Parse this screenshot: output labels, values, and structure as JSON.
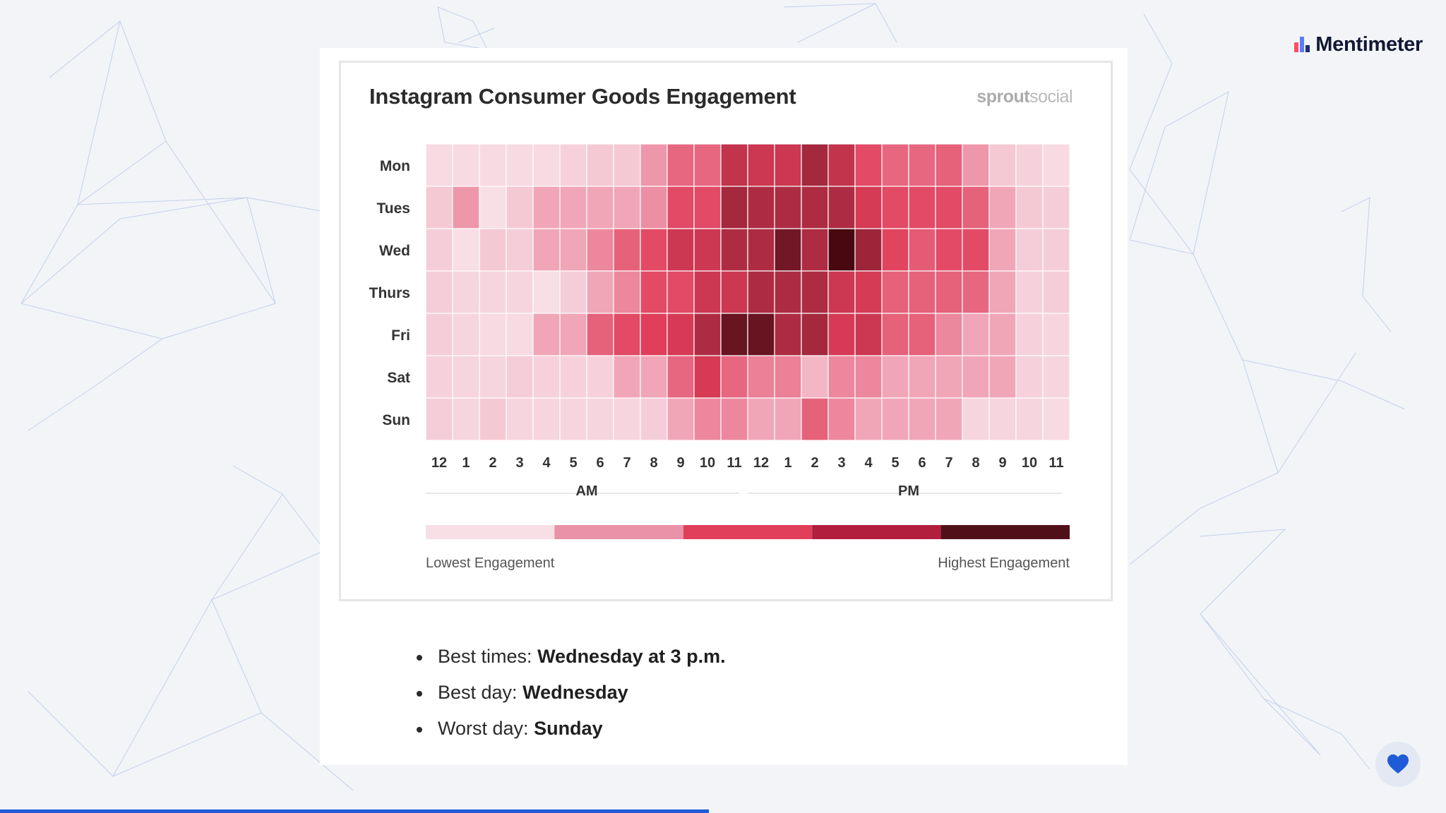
{
  "brand": {
    "name": "Mentimeter",
    "icon": "mentimeter-bars-icon",
    "icon_colors": [
      "#ff4d63",
      "#5b7bff",
      "#1d2b7a"
    ]
  },
  "chart_data": {
    "type": "heatmap",
    "title": "Instagram Consumer Goods Engagement",
    "source_logo": {
      "bold": "sprout",
      "light": "social"
    },
    "rows": [
      "Mon",
      "Tues",
      "Wed",
      "Thurs",
      "Fri",
      "Sat",
      "Sun"
    ],
    "columns": [
      "12",
      "1",
      "2",
      "3",
      "4",
      "5",
      "6",
      "7",
      "8",
      "9",
      "10",
      "11",
      "12",
      "1",
      "2",
      "3",
      "4",
      "5",
      "6",
      "7",
      "8",
      "9",
      "10",
      "11"
    ],
    "column_groups": [
      {
        "label": "AM",
        "start": 0,
        "end": 11
      },
      {
        "label": "PM",
        "start": 12,
        "end": 23
      }
    ],
    "values": [
      [
        0.5,
        0.5,
        0.5,
        0.5,
        0.5,
        0.7,
        0.9,
        0.9,
        1.6,
        2.3,
        2.3,
        3.3,
        3.2,
        3.2,
        3.6,
        3.3,
        2.8,
        2.3,
        2.3,
        2.4,
        1.6,
        0.9,
        0.7,
        0.5
      ],
      [
        0.9,
        1.6,
        0.4,
        0.9,
        1.4,
        1.4,
        1.4,
        1.4,
        1.7,
        2.8,
        2.8,
        3.6,
        3.5,
        3.5,
        3.5,
        3.5,
        3.1,
        2.8,
        2.8,
        2.8,
        2.4,
        1.4,
        0.9,
        0.8
      ],
      [
        0.8,
        0.4,
        0.9,
        0.8,
        1.4,
        1.4,
        1.8,
        2.4,
        2.8,
        3.2,
        3.2,
        3.5,
        3.5,
        4.2,
        3.5,
        4.7,
        3.7,
        2.9,
        2.5,
        2.8,
        2.8,
        1.4,
        0.8,
        0.8
      ],
      [
        0.8,
        0.6,
        0.6,
        0.6,
        0.4,
        0.8,
        1.4,
        1.8,
        2.8,
        2.8,
        3.2,
        3.2,
        3.5,
        3.5,
        3.5,
        3.2,
        3.1,
        2.4,
        2.4,
        2.4,
        2.3,
        1.4,
        0.7,
        0.8
      ],
      [
        0.8,
        0.6,
        0.5,
        0.5,
        1.4,
        1.4,
        2.4,
        2.8,
        3.0,
        3.1,
        3.5,
        4.3,
        4.3,
        3.5,
        3.6,
        3.1,
        3.2,
        2.4,
        2.4,
        1.8,
        1.4,
        1.4,
        0.7,
        0.6
      ],
      [
        0.7,
        0.6,
        0.6,
        0.8,
        0.7,
        0.7,
        0.7,
        1.4,
        1.4,
        2.3,
        3.1,
        2.3,
        1.9,
        1.9,
        1.2,
        1.8,
        1.8,
        1.4,
        1.4,
        1.4,
        1.4,
        1.4,
        0.7,
        0.6
      ],
      [
        0.8,
        0.6,
        0.9,
        0.6,
        0.6,
        0.6,
        0.6,
        0.6,
        0.8,
        1.4,
        1.8,
        1.8,
        1.4,
        1.4,
        2.4,
        1.8,
        1.4,
        1.4,
        1.4,
        1.4,
        0.6,
        0.6,
        0.6,
        0.5
      ]
    ],
    "scale": {
      "min_label": "Lowest Engagement",
      "max_label": "Highest Engagement",
      "colors": [
        "#f7dfe5",
        "#ea92a8",
        "#e03e5a",
        "#b21e3d",
        "#501019"
      ]
    },
    "grid": true
  },
  "summary": {
    "best_times_label": "Best times:",
    "best_times_value": "Wednesday at 3 p.m.",
    "best_day_label": "Best day:",
    "best_day_value": "Wednesday",
    "worst_day_label": "Worst day:",
    "worst_day_value": "Sunday"
  },
  "presentation_progress": 0.49,
  "reaction": {
    "icon": "heart-icon",
    "color": "#1f5bd8"
  }
}
